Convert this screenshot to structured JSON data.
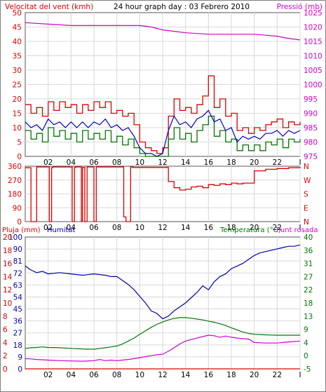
{
  "header": {
    "wind_title": "Velocitat del vent (kmh)",
    "date_title": "24 hour graph day : 03 Febrero 2010",
    "pressure_title": "Pressió (mb)"
  },
  "bottom_header": {
    "rain_title": "Pluja (mm)",
    "humidity_title": "Humitat",
    "temperature_title": "Temperatura (°C)",
    "dewpoint_title": "Punt rosada"
  },
  "colors": {
    "wind": "#dd0000",
    "wind_avg": "#007700",
    "wind_avg_line": "#0000cc",
    "pressure": "#cc00cc",
    "rain": "#dd0000",
    "humidity": "#0000aa",
    "temperature": "#007700",
    "dewpoint": "#cc00cc",
    "grid": "#d8d8d8",
    "axis": "#555555"
  },
  "chart_data": [
    {
      "type": "line",
      "panel": "wind_pressure",
      "x_ticks": [
        "02",
        "04",
        "06",
        "08",
        "10",
        "12",
        "14",
        "16",
        "18",
        "20",
        "22",
        "I"
      ],
      "xlim": [
        0,
        24
      ],
      "ylim_left": [
        0,
        50
      ],
      "yticks_left": [
        0,
        5,
        10,
        15,
        20,
        25,
        30,
        35,
        40,
        45,
        50
      ],
      "ylim_right": [
        975,
        1025
      ],
      "yticks_right": [
        975,
        980,
        985,
        990,
        995,
        1000,
        1005,
        1010,
        1015,
        1020,
        1025
      ],
      "grid": true,
      "series": [
        {
          "name": "Velocitat del vent (kmh)",
          "axis": "left",
          "kind": "step",
          "x": [
            0.0,
            0.5,
            1.0,
            1.5,
            2.0,
            2.5,
            3.0,
            3.5,
            4.0,
            4.5,
            5.0,
            5.5,
            6.0,
            6.5,
            7.0,
            7.5,
            8.0,
            8.5,
            9.0,
            9.5,
            10.0,
            10.5,
            11.0,
            11.5,
            12.0,
            12.5,
            13.0,
            13.5,
            14.0,
            14.5,
            15.0,
            15.5,
            16.0,
            16.5,
            17.0,
            17.5,
            18.0,
            18.5,
            19.0,
            19.5,
            20.0,
            20.5,
            21.0,
            21.5,
            22.0,
            22.5,
            23.0,
            23.5,
            24.0
          ],
          "values": [
            18,
            15,
            17,
            14,
            19,
            16,
            19,
            17,
            18,
            15,
            18,
            16,
            19,
            17,
            19,
            15,
            16,
            14,
            15,
            11,
            5,
            3,
            2,
            1,
            3,
            14,
            20,
            16,
            17,
            15,
            18,
            21,
            28,
            17,
            20,
            14,
            15,
            9,
            10,
            8,
            10,
            9,
            11,
            12,
            13,
            10,
            12,
            11,
            12
          ]
        },
        {
          "name": "Velocitat mitjana (kmh)",
          "axis": "left",
          "kind": "step",
          "x": [
            0.0,
            0.5,
            1.0,
            1.5,
            2.0,
            2.5,
            3.0,
            3.5,
            4.0,
            4.5,
            5.0,
            5.5,
            6.0,
            6.5,
            7.0,
            7.5,
            8.0,
            8.5,
            9.0,
            9.5,
            10.0,
            10.5,
            11.0,
            11.5,
            12.0,
            12.5,
            13.0,
            13.5,
            14.0,
            14.5,
            15.0,
            15.5,
            16.0,
            16.5,
            17.0,
            17.5,
            18.0,
            18.5,
            19.0,
            19.5,
            20.0,
            20.5,
            21.0,
            21.5,
            22.0,
            22.5,
            23.0,
            23.5,
            24.0
          ],
          "values": [
            9,
            6,
            8,
            5,
            10,
            7,
            9,
            6,
            8,
            5,
            9,
            6,
            8,
            6,
            9,
            5,
            7,
            4,
            6,
            3,
            1,
            0,
            0,
            0,
            0,
            6,
            10,
            6,
            8,
            5,
            9,
            11,
            14,
            7,
            9,
            5,
            6,
            2,
            4,
            2,
            4,
            2,
            5,
            4,
            6,
            3,
            6,
            5,
            6
          ]
        },
        {
          "name": "Mitjana vent (kmh)",
          "axis": "left",
          "kind": "line",
          "x": [
            0.0,
            0.5,
            1.0,
            1.5,
            2.0,
            2.5,
            3.0,
            3.5,
            4.0,
            4.5,
            5.0,
            5.5,
            6.0,
            6.5,
            7.0,
            7.5,
            8.0,
            8.5,
            9.0,
            9.5,
            10.0,
            10.5,
            11.0,
            11.5,
            12.0,
            12.5,
            13.0,
            13.5,
            14.0,
            14.5,
            15.0,
            15.5,
            16.0,
            16.5,
            17.0,
            17.5,
            18.0,
            18.5,
            19.0,
            19.5,
            20.0,
            20.5,
            21.0,
            21.5,
            22.0,
            22.5,
            23.0,
            23.5,
            24.0
          ],
          "values": [
            12,
            10,
            11,
            9,
            13,
            11,
            12,
            10,
            12,
            10,
            12,
            10,
            12,
            11,
            13,
            10,
            11,
            9,
            10,
            7,
            3,
            1,
            1,
            0,
            1,
            9,
            14,
            11,
            12,
            10,
            13,
            14,
            16,
            12,
            13,
            9,
            10,
            5,
            7,
            6,
            7,
            6,
            8,
            8,
            9,
            7,
            9,
            8,
            9
          ]
        },
        {
          "name": "Pressió (mb)",
          "axis": "right",
          "kind": "line",
          "x": [
            0,
            2,
            4,
            6,
            8,
            10,
            11,
            12,
            14,
            16,
            18,
            20,
            22,
            23,
            24
          ],
          "values": [
            1021.5,
            1021.0,
            1020.5,
            1020.5,
            1020.5,
            1020.5,
            1020.0,
            1019.0,
            1018.0,
            1017.5,
            1017.5,
            1017.5,
            1016.8,
            1016.0,
            1015.5
          ]
        }
      ]
    },
    {
      "type": "line",
      "panel": "wind_direction",
      "x_ticks": [
        "02",
        "04",
        "06",
        "08",
        "10",
        "12",
        "14",
        "16",
        "18",
        "20",
        "22",
        "I"
      ],
      "xlim": [
        0,
        24
      ],
      "ylim_left": [
        0,
        360
      ],
      "yticks_left": [
        0,
        90,
        180,
        270,
        360
      ],
      "yticks_right": [
        "N",
        "E",
        "S",
        "W",
        "N"
      ],
      "grid": true,
      "series": [
        {
          "name": "Direcció del vent",
          "axis": "left",
          "kind": "step",
          "x": [
            0.0,
            0.5,
            1.0,
            1.5,
            2.0,
            2.1,
            2.3,
            2.4,
            3.0,
            4.0,
            4.1,
            4.3,
            4.4,
            4.9,
            5.0,
            5.2,
            5.4,
            6.0,
            6.2,
            6.4,
            8.0,
            8.6,
            8.8,
            9.2,
            9.4,
            10.0,
            10.5,
            11.0,
            11.5,
            12.0,
            12.5,
            13.0,
            13.5,
            14.0,
            14.5,
            15.0,
            15.5,
            16.0,
            16.5,
            17.0,
            17.5,
            18.0,
            18.5,
            19.0,
            19.5,
            20.0,
            21.0,
            22.0,
            23.0,
            24.0
          ],
          "values": [
            350,
            0,
            355,
            355,
            355,
            0,
            350,
            355,
            355,
            355,
            0,
            352,
            355,
            0,
            352,
            0,
            355,
            0,
            355,
            355,
            355,
            30,
            0,
            355,
            352,
            352,
            352,
            352,
            352,
            352,
            260,
            220,
            205,
            210,
            225,
            230,
            220,
            240,
            235,
            245,
            240,
            250,
            245,
            250,
            250,
            330,
            340,
            345,
            350,
            355
          ]
        }
      ]
    },
    {
      "type": "line",
      "panel": "humidity_temperature",
      "x_ticks": [
        "02",
        "04",
        "06",
        "08",
        "10",
        "12",
        "14",
        "16",
        "18",
        "20",
        "22",
        "I"
      ],
      "xlim": [
        0,
        24
      ],
      "ylim_left": [
        0,
        100
      ],
      "yticks_left": [
        0,
        9,
        18,
        27,
        36,
        45,
        54,
        63,
        72,
        81,
        90,
        100
      ],
      "yticks_left_outer": [
        0,
        2,
        4,
        6,
        8,
        10,
        12,
        14,
        16,
        18,
        20
      ],
      "ylim_right": [
        -5,
        40
      ],
      "yticks_right": [
        -5,
        0,
        4,
        9,
        13,
        18,
        22,
        27,
        31,
        36,
        40
      ],
      "grid": true,
      "series": [
        {
          "name": "Pluja (mm)",
          "axis": "outer-left",
          "kind": "line",
          "x": [
            0,
            24
          ],
          "values": [
            0,
            0
          ]
        },
        {
          "name": "Humitat",
          "axis": "left",
          "kind": "line",
          "x": [
            0.0,
            0.5,
            1.0,
            1.5,
            2.0,
            3.0,
            4.0,
            5.0,
            6.0,
            7.0,
            7.5,
            8.0,
            8.5,
            9.0,
            9.5,
            10.0,
            10.5,
            11.0,
            11.5,
            12.0,
            12.5,
            13.0,
            13.5,
            14.0,
            14.5,
            15.0,
            15.5,
            16.0,
            16.5,
            17.0,
            17.5,
            18.0,
            18.5,
            19.0,
            19.5,
            20.0,
            20.5,
            21.0,
            21.5,
            22.0,
            22.5,
            23.0,
            23.5,
            24.0
          ],
          "values": [
            78,
            75,
            73,
            74,
            72,
            73,
            72,
            71,
            72,
            71,
            70,
            70,
            67,
            64,
            60,
            55,
            50,
            44,
            42,
            38,
            40,
            44,
            47,
            50,
            54,
            58,
            63,
            60,
            66,
            70,
            72,
            76,
            78,
            80,
            83,
            86,
            88,
            89,
            90,
            91,
            92,
            93,
            93,
            94
          ]
        },
        {
          "name": "Temperatura (°C)",
          "axis": "right",
          "kind": "line",
          "x": [
            0.0,
            0.5,
            1.0,
            1.5,
            2.0,
            3.0,
            4.0,
            5.0,
            6.0,
            6.5,
            7.0,
            7.5,
            8.0,
            8.5,
            9.0,
            9.5,
            10.0,
            10.5,
            11.0,
            11.5,
            12.0,
            12.5,
            13.0,
            13.5,
            14.0,
            14.5,
            15.0,
            15.5,
            16.0,
            16.5,
            17.0,
            17.5,
            18.0,
            18.5,
            19.0,
            19.5,
            20.0,
            21.0,
            22.0,
            23.0,
            24.0
          ],
          "values": [
            2.0,
            2.2,
            2.3,
            2.5,
            2.3,
            2.2,
            2.0,
            1.8,
            1.7,
            2.0,
            2.2,
            2.5,
            2.8,
            3.5,
            4.5,
            5.5,
            6.8,
            8.0,
            9.2,
            10.2,
            11.0,
            11.7,
            12.2,
            12.5,
            12.5,
            12.3,
            12.0,
            11.7,
            11.3,
            10.9,
            10.4,
            9.8,
            9.0,
            8.3,
            7.6,
            7.1,
            6.8,
            6.6,
            6.5,
            6.5,
            6.5
          ]
        },
        {
          "name": "Punt rosada",
          "axis": "right",
          "kind": "line",
          "x": [
            0.0,
            0.5,
            1.0,
            2.0,
            3.0,
            4.0,
            5.0,
            6.0,
            6.5,
            7.0,
            7.5,
            8.0,
            8.5,
            9.0,
            9.5,
            10.0,
            10.5,
            11.0,
            11.5,
            12.0,
            12.5,
            13.0,
            13.5,
            14.0,
            14.5,
            15.0,
            15.5,
            16.0,
            16.5,
            17.0,
            17.5,
            18.0,
            18.5,
            19.0,
            19.5,
            20.0,
            21.0,
            22.0,
            23.0,
            24.0
          ],
          "values": [
            -1.5,
            -1.6,
            -1.8,
            -2.0,
            -2.2,
            -2.3,
            -2.4,
            -2.2,
            -1.8,
            -2.2,
            -2.0,
            -2.2,
            -2.0,
            -1.8,
            -1.5,
            -1.2,
            -0.8,
            -0.5,
            -0.2,
            0.0,
            1.0,
            2.2,
            3.5,
            4.5,
            5.0,
            5.5,
            6.0,
            6.5,
            6.3,
            5.8,
            6.2,
            5.8,
            5.5,
            5.3,
            5.2,
            4.0,
            3.8,
            3.8,
            4.2,
            4.5
          ]
        }
      ]
    }
  ]
}
